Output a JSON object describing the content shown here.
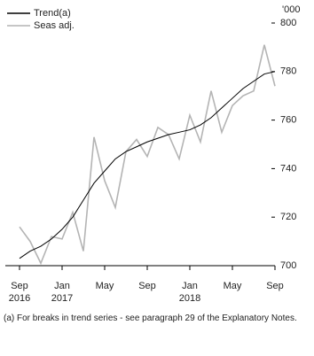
{
  "chart_data": {
    "type": "line",
    "ylabel": "'000",
    "categories": [
      "Sep 2016",
      null,
      null,
      null,
      "Jan 2017",
      null,
      null,
      null,
      "May",
      null,
      null,
      null,
      "Sep",
      null,
      null,
      null,
      "Jan 2018",
      null,
      null,
      null,
      "May",
      null,
      null,
      null,
      "Sep"
    ],
    "series": [
      {
        "name": "Trend(a)",
        "color": "#000000",
        "values": [
          703,
          706,
          708,
          711,
          715,
          720,
          727,
          734,
          739,
          744,
          747,
          749,
          751,
          752.5,
          754,
          755,
          756,
          758,
          761,
          765,
          769,
          773,
          776,
          779,
          780
        ]
      },
      {
        "name": "Seas adj.",
        "color": "#b4b4b4",
        "values": [
          716,
          710,
          701,
          712,
          711,
          722,
          706,
          753,
          735,
          724,
          747,
          752,
          745,
          757,
          754,
          744,
          762,
          751,
          772,
          755,
          766,
          770,
          772,
          791,
          774
        ]
      }
    ],
    "ylim": [
      700,
      800
    ],
    "yticks": [
      700,
      720,
      740,
      760,
      780,
      800
    ],
    "grid": false,
    "legend": "top-left",
    "footnote": "(a) For breaks in trend series - see paragraph 29 of the Explanatory Notes."
  }
}
